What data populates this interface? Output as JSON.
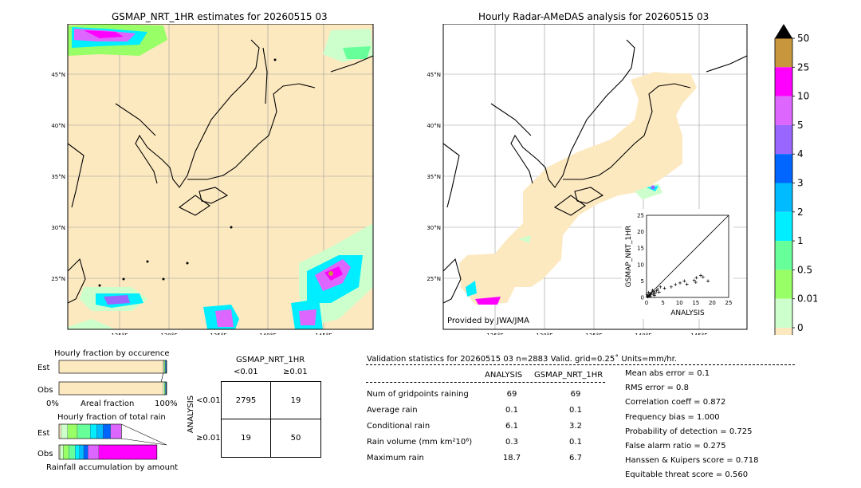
{
  "map_left": {
    "title": "GSMAP_NRT_1HR estimates for 20260515 03",
    "lat_labels": [
      "45°N",
      "40°N",
      "35°N",
      "30°N",
      "25°N"
    ],
    "lon_labels": [
      "125°E",
      "130°E",
      "135°E",
      "140°E",
      "145°E"
    ]
  },
  "map_right": {
    "title": "Hourly Radar-AMeDAS analysis for 20260515 03",
    "lat_labels": [
      "45°N",
      "40°N",
      "35°N",
      "30°N",
      "25°N"
    ],
    "lon_labels": [
      "125°E",
      "130°E",
      "135°E",
      "140°E",
      "145°E"
    ],
    "credit": "Provided by JWA/JMA"
  },
  "colorbar": {
    "labels": [
      "50",
      "25",
      "10",
      "5",
      "4",
      "3",
      "2",
      "1",
      "0.5",
      "0.01",
      "0"
    ],
    "colors": [
      "#c8963c",
      "#ff00ff",
      "#dd66ff",
      "#9966ff",
      "#0066ff",
      "#00bbff",
      "#00eeff",
      "#66ff99",
      "#99ff66",
      "#ccffcc",
      "#fde9c0"
    ]
  },
  "scatter": {
    "ylabel": "GSMAP_NRT_1HR",
    "xlabel": "ANALYSIS",
    "ticks": [
      "0",
      "5",
      "10",
      "15",
      "20",
      "25"
    ]
  },
  "occurrence": {
    "title": "Hourly fraction by occurence",
    "est_label": "Est",
    "obs_label": "Obs",
    "x0": "0%",
    "x1": "100%",
    "xlabel": "Areal fraction"
  },
  "total_rain": {
    "title": "Hourly fraction of total rain",
    "est_label": "Est",
    "obs_label": "Obs",
    "xlabel": "Rainfall accumulation by amount"
  },
  "contingency": {
    "title": "GSMAP_NRT_1HR",
    "col_lt": "<0.01",
    "col_ge": "≥0.01",
    "row_title": "ANALYSIS",
    "row_lt": "<0.01",
    "row_ge": "≥0.01",
    "a": "2795",
    "b": "19",
    "c": "19",
    "d": "50"
  },
  "validation": {
    "header": "Validation statistics for 20260515 03  n=2883 Valid. grid=0.25˚ Units=mm/hr.",
    "col_analysis": "ANALYSIS",
    "col_gsmap": "GSMAP_NRT_1HR",
    "rows": [
      {
        "label": "Num of gridpoints raining",
        "analysis": "69",
        "gsmap": "69"
      },
      {
        "label": "Average rain",
        "analysis": "0.1",
        "gsmap": "0.1"
      },
      {
        "label": "Conditional rain",
        "analysis": "6.1",
        "gsmap": "3.2"
      },
      {
        "label": "Rain volume (mm km²10⁶)",
        "analysis": "0.3",
        "gsmap": "0.1"
      },
      {
        "label": "Maximum rain",
        "analysis": "18.7",
        "gsmap": "6.7"
      }
    ],
    "scores": [
      "Mean abs error =    0.1",
      "RMS error =    0.8",
      "Correlation coeff =  0.872",
      "Frequency bias =  1.000",
      "Probability of detection =  0.725",
      "False alarm ratio =  0.275",
      "Hanssen & Kuipers score =  0.718",
      "Equitable threat score =  0.560"
    ]
  },
  "chart_data": [
    {
      "type": "scatter",
      "title": "",
      "xlabel": "ANALYSIS",
      "ylabel": "GSMAP_NRT_1HR",
      "xlim": [
        0,
        25
      ],
      "ylim": [
        0,
        25
      ],
      "points": [
        [
          0.3,
          0.2
        ],
        [
          0.5,
          0.4
        ],
        [
          0.8,
          0.6
        ],
        [
          1.0,
          1.2
        ],
        [
          1.3,
          0.9
        ],
        [
          1.6,
          1.5
        ],
        [
          2.0,
          1.0
        ],
        [
          2.2,
          1.8
        ],
        [
          2.6,
          1.3
        ],
        [
          3.0,
          2.0
        ],
        [
          3.4,
          2.5
        ],
        [
          4.2,
          3.2
        ],
        [
          5.5,
          2.8
        ],
        [
          7.5,
          3.2
        ],
        [
          8.8,
          3.9
        ],
        [
          10.2,
          4.4
        ],
        [
          11.5,
          5.0
        ],
        [
          12.3,
          4.0
        ],
        [
          14.5,
          5.2
        ],
        [
          15.0,
          4.6
        ],
        [
          15.2,
          6.0
        ],
        [
          16.5,
          6.7
        ],
        [
          17.2,
          6.2
        ],
        [
          18.7,
          5.0
        ],
        [
          0.2,
          0.8
        ],
        [
          0.6,
          1.5
        ],
        [
          1.1,
          0.3
        ],
        [
          1.8,
          2.2
        ],
        [
          2.4,
          0.6
        ],
        [
          3.8,
          1.6
        ]
      ]
    },
    {
      "type": "bar",
      "title": "Hourly fraction by occurence",
      "xlabel": "Areal fraction",
      "series": [
        {
          "name": "Est",
          "values": [
            0.968,
            0.008,
            0.009,
            0.007,
            0.005,
            0.003
          ]
        },
        {
          "name": "Obs",
          "values": [
            0.968,
            0.012,
            0.008,
            0.006,
            0.004,
            0.002
          ]
        }
      ]
    },
    {
      "type": "bar",
      "title": "Hourly fraction of total rain",
      "xlabel": "Rainfall accumulation by amount",
      "series": [
        {
          "name": "Est",
          "values": [
            0.02,
            0.06,
            0.09,
            0.12,
            0.06,
            0.06,
            0.07,
            0.1
          ]
        },
        {
          "name": "Obs",
          "values": [
            0.01,
            0.03,
            0.05,
            0.06,
            0.04,
            0.04,
            0.04,
            0.1,
            0.54
          ]
        }
      ]
    }
  ]
}
